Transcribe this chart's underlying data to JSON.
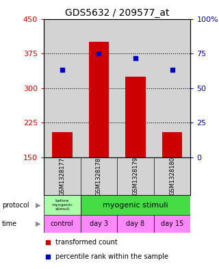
{
  "title": "GDS5632 / 209577_at",
  "samples": [
    "GSM1328177",
    "GSM1328178",
    "GSM1328179",
    "GSM1328180"
  ],
  "bar_values": [
    55,
    250,
    175,
    55
  ],
  "bar_bottoms": [
    150,
    150,
    150,
    150
  ],
  "percentile_values": [
    340,
    375,
    365,
    340
  ],
  "ylim_left": [
    150,
    450
  ],
  "ylim_right": [
    0,
    100
  ],
  "yticks_left": [
    150,
    225,
    300,
    375,
    450
  ],
  "yticks_right": [
    0,
    25,
    50,
    75,
    100
  ],
  "bar_color": "#cc0000",
  "dot_color": "#0000cc",
  "bar_width": 0.55,
  "protocol_col0_label": "before\nmyogenic\nstimuli",
  "protocol_col1_label": "myogenic stimuli",
  "protocol_col0_color": "#aaffaa",
  "protocol_col1_color": "#44dd44",
  "time_labels": [
    "control",
    "day 3",
    "day 8",
    "day 15"
  ],
  "time_color": "#ff88ff",
  "legend_red": "transformed count",
  "legend_blue": "percentile rank within the sample",
  "background_color": "#d3d3d3",
  "title_fontsize": 10,
  "axis_label_color_left": "#cc0000",
  "axis_label_color_right": "#0000cc",
  "tick_fontsize": 8
}
